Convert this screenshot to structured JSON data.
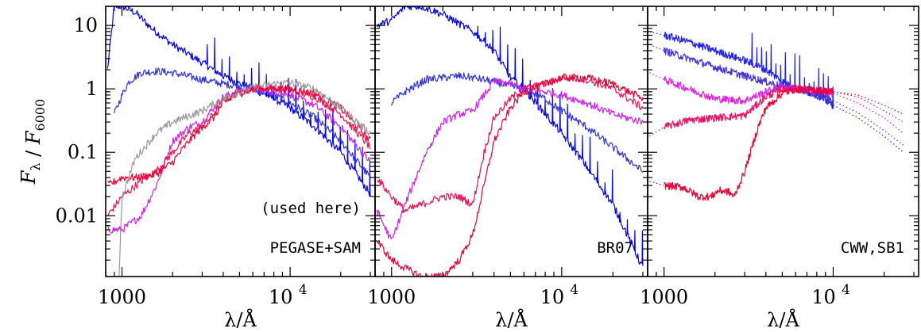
{
  "chart_data": [
    {
      "type": "line",
      "panel_label": "PEGASE+SAM",
      "annotation": "(used here)",
      "xlabel": "λ/Å",
      "ylabel": "F_λ / F_6000",
      "x_scale": "log",
      "y_scale": "log",
      "xlim": [
        800,
        32000
      ],
      "ylim": [
        0.0011,
        20
      ],
      "x_ticks": [
        {
          "value": 1000,
          "label": "1000"
        },
        {
          "value": 10000,
          "label": "10^4"
        }
      ],
      "y_ticks": [
        {
          "value": 10,
          "label": "10"
        },
        {
          "value": 1,
          "label": "1"
        },
        {
          "value": 0.1,
          "label": "0.1"
        },
        {
          "value": 0.01,
          "label": "0.01"
        }
      ],
      "series": [
        {
          "color": "#0000ff",
          "style": "solid",
          "spikes": true,
          "x": [
            820,
            900,
            1000,
            1200,
            1500,
            2000,
            3000,
            4000,
            5000,
            6000,
            8000,
            10000,
            14000,
            20000,
            30000
          ],
          "y": [
            2,
            20,
            20,
            16,
            9,
            5,
            2.6,
            1.6,
            1.2,
            1,
            0.7,
            0.5,
            0.25,
            0.1,
            0.022
          ]
        },
        {
          "color": "#3333dd",
          "style": "solid",
          "spikes": false,
          "x": [
            900,
            1000,
            1100,
            1300,
            1600,
            2000,
            3000,
            4000,
            5000,
            6000,
            8000,
            10000,
            14000,
            20000,
            30000
          ],
          "y": [
            0.4,
            0.8,
            1.3,
            1.8,
            1.9,
            1.8,
            1.4,
            1.2,
            1.1,
            1,
            0.8,
            0.6,
            0.35,
            0.15,
            0.04
          ]
        },
        {
          "color": "#cc22ee",
          "style": "solid",
          "spikes": false,
          "x": [
            820,
            1000,
            1300,
            1600,
            2000,
            2500,
            3000,
            3500,
            4000,
            5000,
            6000,
            8000,
            10000,
            14000,
            20000,
            30000
          ],
          "y": [
            0.006,
            0.006,
            0.01,
            0.03,
            0.15,
            0.25,
            0.3,
            0.5,
            0.75,
            0.9,
            1,
            0.9,
            0.8,
            0.55,
            0.25,
            0.07
          ]
        },
        {
          "color": "#ee1155",
          "style": "solid",
          "spikes": false,
          "x": [
            820,
            1000,
            1300,
            1600,
            2000,
            2500,
            3000,
            3500,
            4000,
            5000,
            6000,
            8000,
            10000,
            14000,
            20000,
            30000
          ],
          "y": [
            0.01,
            0.02,
            0.035,
            0.05,
            0.1,
            0.2,
            0.25,
            0.4,
            0.65,
            0.9,
            1,
            1,
            0.95,
            0.75,
            0.4,
            0.12
          ]
        },
        {
          "color": "#ee0033",
          "style": "solid",
          "spikes": false,
          "x": [
            820,
            1000,
            1200,
            1600,
            2000,
            2500,
            3000,
            3500,
            4000,
            5000,
            6000,
            8000,
            10000,
            14000,
            20000,
            30000
          ],
          "y": [
            0.03,
            0.04,
            0.04,
            0.045,
            0.07,
            0.15,
            0.25,
            0.35,
            0.6,
            0.85,
            1,
            1.05,
            1.0,
            0.85,
            0.5,
            0.15
          ]
        },
        {
          "color": "#999999",
          "style": "solid",
          "spikes": false,
          "x": [
            960,
            1000,
            1200,
            1600,
            2000,
            3000,
            4000,
            5000,
            6000,
            8000,
            10000,
            14000,
            20000,
            30000
          ],
          "y": [
            0.0011,
            0.02,
            0.08,
            0.2,
            0.3,
            0.45,
            0.7,
            0.9,
            1.05,
            1.2,
            1.25,
            1.0,
            0.5,
            0.2
          ]
        }
      ]
    },
    {
      "type": "line",
      "panel_label": "BR07",
      "x_scale": "log",
      "y_scale": "log",
      "xlim": [
        800,
        32000
      ],
      "ylim": [
        0.0011,
        20
      ],
      "x_ticks": [
        {
          "value": 1000,
          "label": "1000"
        },
        {
          "value": 10000,
          "label": "10^4"
        }
      ],
      "series": [
        {
          "color": "#0000ff",
          "style": "solid",
          "spikes": true,
          "x": [
            820,
            1000,
            1200,
            1500,
            2000,
            3000,
            4000,
            5000,
            6000,
            8000,
            10000,
            14000,
            20000,
            30000
          ],
          "y": [
            10,
            12,
            20,
            20,
            15,
            8,
            4,
            1.5,
            1,
            0.4,
            0.2,
            0.06,
            0.015,
            0.0015
          ]
        },
        {
          "color": "#3333dd",
          "style": "solid",
          "spikes": false,
          "x": [
            1000,
            1200,
            1600,
            2000,
            2500,
            3000,
            4000,
            5000,
            6000,
            8000,
            10000,
            14000,
            20000,
            30000
          ],
          "y": [
            0.6,
            0.9,
            1.4,
            1.5,
            1.6,
            1.5,
            1.3,
            1.1,
            1,
            0.7,
            0.45,
            0.25,
            0.12,
            0.05
          ]
        },
        {
          "color": "#cc22ee",
          "style": "solid",
          "spikes": false,
          "x": [
            820,
            1000,
            1200,
            1600,
            2000,
            2500,
            3000,
            3500,
            4000,
            5000,
            6000,
            8000,
            10000,
            14000,
            20000,
            30000
          ],
          "y": [
            0.012,
            0.004,
            0.015,
            0.1,
            0.3,
            0.4,
            0.45,
            0.8,
            1.3,
            1.2,
            1,
            0.9,
            0.8,
            0.6,
            0.4,
            0.3
          ]
        },
        {
          "color": "#ee1155",
          "style": "solid",
          "spikes": false,
          "x": [
            820,
            1000,
            1200,
            1500,
            2000,
            2500,
            3000,
            3500,
            4000,
            5000,
            6000,
            8000,
            10000,
            14000,
            20000,
            30000
          ],
          "y": [
            0.04,
            0.02,
            0.012,
            0.015,
            0.02,
            0.02,
            0.015,
            0.1,
            0.35,
            0.7,
            1,
            1.2,
            1.5,
            1.4,
            1.0,
            0.5
          ]
        },
        {
          "color": "#ee0033",
          "style": "solid",
          "spikes": false,
          "x": [
            820,
            1000,
            1200,
            1500,
            2000,
            2500,
            3000,
            3500,
            4000,
            5000,
            6000,
            8000,
            10000,
            14000,
            20000,
            30000
          ],
          "y": [
            0.004,
            0.002,
            0.0015,
            0.0011,
            0.0011,
            0.002,
            0.005,
            0.03,
            0.15,
            0.5,
            0.9,
            1.2,
            1.5,
            1.5,
            1.2,
            0.7
          ]
        }
      ]
    },
    {
      "type": "line",
      "panel_label": "CWW,SB1",
      "x_scale": "log",
      "y_scale": "log",
      "xlim": [
        800,
        32000
      ],
      "ylim": [
        0.0011,
        20
      ],
      "x_ticks": [
        {
          "value": 1000,
          "label": "1000"
        },
        {
          "value": 10000,
          "label": "10^4"
        }
      ],
      "series": [
        {
          "color": "#2222ee",
          "style": "solid",
          "spikes": true,
          "x": [
            1000,
            1400,
            2000,
            3000,
            4000,
            5000,
            6000,
            8000,
            10000
          ],
          "y": [
            7,
            5.5,
            4,
            2.8,
            2,
            1.3,
            1,
            0.8,
            0.55
          ]
        },
        {
          "color": "#2222ee",
          "style": "dotted",
          "spikes": false,
          "x": [
            820,
            1000
          ],
          "y": [
            8,
            7
          ]
        },
        {
          "color": "#2222ee",
          "style": "dotted",
          "spikes": false,
          "x": [
            10000,
            14000,
            20000,
            26000
          ],
          "y": [
            0.55,
            0.35,
            0.18,
            0.1
          ]
        },
        {
          "color": "#4433dd",
          "style": "solid",
          "spikes": false,
          "x": [
            1000,
            1400,
            2000,
            3000,
            4000,
            5000,
            6000,
            8000,
            10000
          ],
          "y": [
            4,
            3,
            2.2,
            1.6,
            1.3,
            1.1,
            1,
            0.85,
            0.65
          ]
        },
        {
          "color": "#4433dd",
          "style": "dotted",
          "spikes": false,
          "x": [
            820,
            1000
          ],
          "y": [
            5,
            4
          ]
        },
        {
          "color": "#4433dd",
          "style": "dotted",
          "spikes": false,
          "x": [
            10000,
            14000,
            20000,
            26000
          ],
          "y": [
            0.65,
            0.42,
            0.22,
            0.13
          ]
        },
        {
          "color": "#dd22dd",
          "style": "solid",
          "spikes": false,
          "x": [
            1000,
            1400,
            2000,
            3000,
            4000,
            5000,
            6000,
            8000,
            10000
          ],
          "y": [
            1.4,
            1.0,
            0.7,
            0.65,
            0.9,
            1.1,
            1,
            0.9,
            0.85
          ]
        },
        {
          "color": "#dd22dd",
          "style": "dotted",
          "spikes": false,
          "x": [
            820,
            1000
          ],
          "y": [
            1.8,
            1.4
          ]
        },
        {
          "color": "#dd22dd",
          "style": "dotted",
          "spikes": false,
          "x": [
            10000,
            14000,
            20000,
            26000
          ],
          "y": [
            0.85,
            0.6,
            0.35,
            0.2
          ]
        },
        {
          "color": "#ee1166",
          "style": "solid",
          "spikes": false,
          "x": [
            1000,
            1400,
            2000,
            3000,
            4000,
            5000,
            6000,
            8000,
            10000
          ],
          "y": [
            0.25,
            0.32,
            0.35,
            0.38,
            0.75,
            1.0,
            1,
            0.95,
            0.9
          ]
        },
        {
          "color": "#ee1166",
          "style": "dotted",
          "spikes": false,
          "x": [
            820,
            1000
          ],
          "y": [
            0.18,
            0.25
          ]
        },
        {
          "color": "#ee1166",
          "style": "dotted",
          "spikes": false,
          "x": [
            10000,
            14000,
            20000,
            26000
          ],
          "y": [
            0.9,
            0.75,
            0.45,
            0.3
          ]
        },
        {
          "color": "#ee0033",
          "style": "solid",
          "spikes": false,
          "x": [
            1000,
            1300,
            1600,
            1900,
            2100,
            2400,
            2600,
            3000,
            3600,
            4000,
            5000,
            6000,
            8000,
            10000
          ],
          "y": [
            0.03,
            0.028,
            0.02,
            0.02,
            0.025,
            0.024,
            0.02,
            0.05,
            0.25,
            0.5,
            0.85,
            1,
            0.95,
            0.9
          ]
        },
        {
          "color": "#ee0033",
          "style": "dotted",
          "spikes": false,
          "x": [
            820,
            1000
          ],
          "y": [
            0.035,
            0.03
          ]
        },
        {
          "color": "#ee0033",
          "style": "dotted",
          "spikes": false,
          "x": [
            10000,
            14000,
            20000,
            26000
          ],
          "y": [
            0.9,
            0.8,
            0.55,
            0.4
          ]
        }
      ]
    }
  ]
}
